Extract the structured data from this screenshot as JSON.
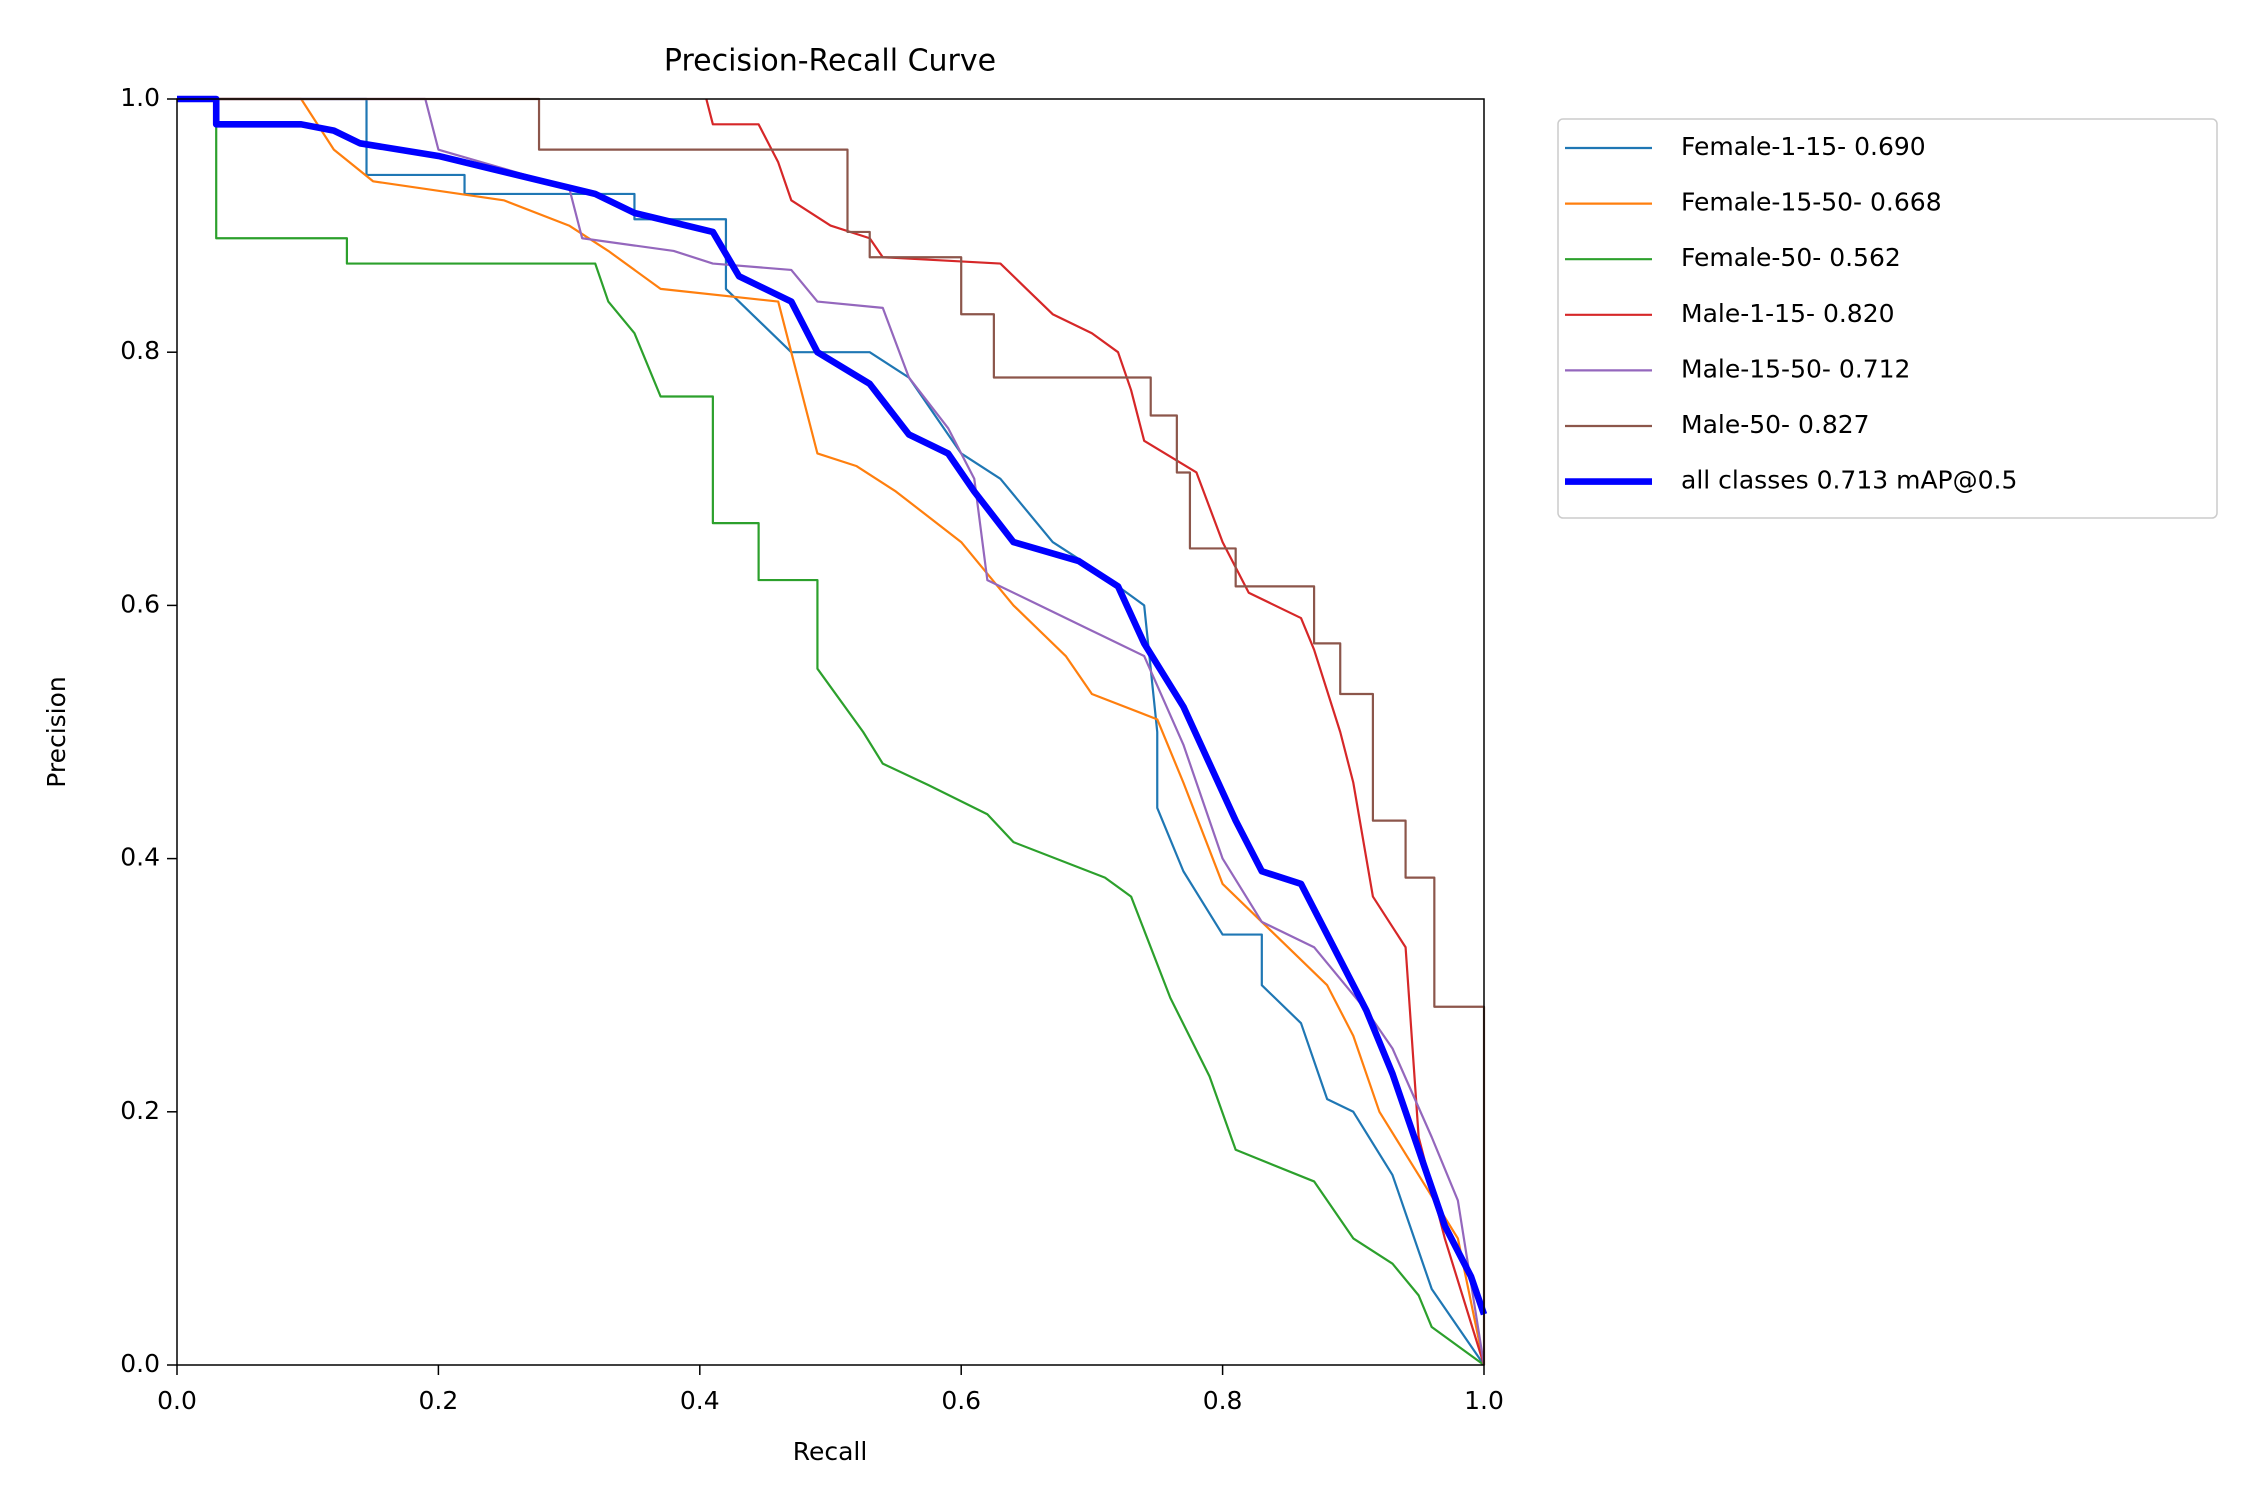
{
  "chart_data": {
    "type": "line",
    "title": "Precision-Recall Curve",
    "xlabel": "Recall",
    "ylabel": "Precision",
    "xlim": [
      0,
      1
    ],
    "ylim": [
      0,
      1
    ],
    "xticks": [
      {
        "value": 0,
        "label": "0.0"
      },
      0.2,
      0.4,
      0.6,
      0.8,
      {
        "value": 1,
        "label": "1.0"
      }
    ],
    "yticks": [
      {
        "value": 0,
        "label": "0.0"
      },
      0.2,
      0.4,
      0.6,
      0.8,
      {
        "value": 1,
        "label": "1.0"
      }
    ],
    "legend_position": "right",
    "series": [
      {
        "name": "Female-1-15- 0.690",
        "color": "#1f77b4",
        "line_width": 1,
        "x": [
          0,
          0.145,
          0.145,
          0.22,
          0.22,
          0.35,
          0.35,
          0.42,
          0.42,
          0.47,
          0.53,
          0.56,
          0.6,
          0.63,
          0.67,
          0.7,
          0.74,
          0.75,
          0.75,
          0.77,
          0.8,
          0.83,
          0.83,
          0.86,
          0.88,
          0.9,
          0.93,
          0.94,
          0.96,
          1.0
        ],
        "values": [
          1,
          1,
          0.94,
          0.94,
          0.925,
          0.925,
          0.905,
          0.905,
          0.85,
          0.8,
          0.8,
          0.78,
          0.72,
          0.7,
          0.65,
          0.63,
          0.6,
          0.5,
          0.44,
          0.39,
          0.34,
          0.34,
          0.3,
          0.27,
          0.21,
          0.2,
          0.15,
          0.12,
          0.06,
          0
        ]
      },
      {
        "name": "Female-15-50- 0.668",
        "color": "#ff7f0e",
        "line_width": 1,
        "x": [
          0,
          0.095,
          0.12,
          0.15,
          0.25,
          0.3,
          0.33,
          0.37,
          0.46,
          0.47,
          0.49,
          0.52,
          0.55,
          0.6,
          0.64,
          0.68,
          0.7,
          0.75,
          0.77,
          0.8,
          0.85,
          0.88,
          0.9,
          0.92,
          0.95,
          0.98,
          1.0
        ],
        "values": [
          1,
          1,
          0.96,
          0.935,
          0.92,
          0.9,
          0.88,
          0.85,
          0.84,
          0.8,
          0.72,
          0.71,
          0.69,
          0.65,
          0.6,
          0.56,
          0.53,
          0.51,
          0.46,
          0.38,
          0.33,
          0.3,
          0.26,
          0.2,
          0.15,
          0.1,
          0
        ]
      },
      {
        "name": "Female-50- 0.562",
        "color": "#2ca02c",
        "line_width": 1,
        "x": [
          0,
          0.03,
          0.03,
          0.13,
          0.13,
          0.32,
          0.33,
          0.35,
          0.37,
          0.41,
          0.41,
          0.445,
          0.445,
          0.49,
          0.49,
          0.525,
          0.54,
          0.575,
          0.62,
          0.64,
          0.71,
          0.73,
          0.76,
          0.79,
          0.81,
          0.87,
          0.9,
          0.93,
          0.95,
          0.96,
          1.0
        ],
        "values": [
          1,
          1,
          0.89,
          0.89,
          0.87,
          0.87,
          0.84,
          0.815,
          0.765,
          0.765,
          0.665,
          0.665,
          0.62,
          0.62,
          0.55,
          0.5,
          0.475,
          0.458,
          0.435,
          0.413,
          0.385,
          0.37,
          0.29,
          0.228,
          0.17,
          0.145,
          0.1,
          0.08,
          0.055,
          0.03,
          0
        ]
      },
      {
        "name": "Male-1-15- 0.820",
        "color": "#d62728",
        "line_width": 1,
        "x": [
          0.405,
          0.41,
          0.445,
          0.46,
          0.47,
          0.5,
          0.53,
          0.54,
          0.63,
          0.65,
          0.67,
          0.7,
          0.72,
          0.73,
          0.74,
          0.78,
          0.8,
          0.82,
          0.86,
          0.87,
          0.89,
          0.9,
          0.915,
          0.94,
          0.95,
          0.97,
          1.0
        ],
        "values": [
          1,
          0.98,
          0.98,
          0.95,
          0.92,
          0.9,
          0.89,
          0.875,
          0.87,
          0.85,
          0.83,
          0.815,
          0.8,
          0.77,
          0.73,
          0.705,
          0.65,
          0.61,
          0.59,
          0.565,
          0.5,
          0.46,
          0.37,
          0.33,
          0.18,
          0.1,
          0
        ]
      },
      {
        "name": "Male-15-50- 0.712",
        "color": "#9467bd",
        "line_width": 1,
        "x": [
          0,
          0.19,
          0.2,
          0.3,
          0.31,
          0.38,
          0.41,
          0.47,
          0.49,
          0.54,
          0.56,
          0.59,
          0.61,
          0.62,
          0.66,
          0.7,
          0.72,
          0.74,
          0.77,
          0.8,
          0.83,
          0.87,
          0.91,
          0.93,
          0.96,
          0.98,
          1.0
        ],
        "values": [
          1,
          1,
          0.96,
          0.93,
          0.89,
          0.88,
          0.87,
          0.865,
          0.84,
          0.835,
          0.78,
          0.74,
          0.7,
          0.62,
          0.6,
          0.58,
          0.57,
          0.56,
          0.49,
          0.4,
          0.35,
          0.33,
          0.28,
          0.25,
          0.18,
          0.13,
          0
        ]
      },
      {
        "name": "Male-50- 0.827",
        "color": "#8c564b",
        "line_width": 1,
        "x": [
          0,
          0.277,
          0.277,
          0.513,
          0.513,
          0.53,
          0.53,
          0.6,
          0.6,
          0.625,
          0.625,
          0.745,
          0.745,
          0.765,
          0.765,
          0.775,
          0.775,
          0.81,
          0.81,
          0.87,
          0.87,
          0.89,
          0.89,
          0.915,
          0.915,
          0.94,
          0.94,
          0.962,
          0.962,
          1.0,
          1.0
        ],
        "values": [
          1,
          1,
          0.96,
          0.96,
          0.895,
          0.895,
          0.875,
          0.875,
          0.83,
          0.83,
          0.78,
          0.78,
          0.75,
          0.75,
          0.705,
          0.705,
          0.645,
          0.645,
          0.615,
          0.615,
          0.57,
          0.57,
          0.53,
          0.53,
          0.43,
          0.43,
          0.385,
          0.385,
          0.283,
          0.283,
          0
        ]
      },
      {
        "name": "all classes 0.713 mAP@0.5",
        "color": "#0000ff",
        "line_width": 3,
        "x": [
          0,
          0.03,
          0.03,
          0.095,
          0.12,
          0.14,
          0.2,
          0.24,
          0.28,
          0.32,
          0.35,
          0.41,
          0.43,
          0.47,
          0.49,
          0.53,
          0.56,
          0.59,
          0.61,
          0.64,
          0.69,
          0.72,
          0.74,
          0.77,
          0.79,
          0.81,
          0.83,
          0.86,
          0.88,
          0.91,
          0.93,
          0.95,
          0.97,
          0.99,
          1.0
        ],
        "values": [
          1,
          1,
          0.98,
          0.98,
          0.975,
          0.965,
          0.955,
          0.945,
          0.935,
          0.925,
          0.91,
          0.895,
          0.86,
          0.84,
          0.8,
          0.775,
          0.735,
          0.72,
          0.69,
          0.65,
          0.635,
          0.615,
          0.57,
          0.52,
          0.475,
          0.43,
          0.39,
          0.38,
          0.34,
          0.28,
          0.23,
          0.17,
          0.11,
          0.07,
          0.04
        ]
      }
    ]
  }
}
